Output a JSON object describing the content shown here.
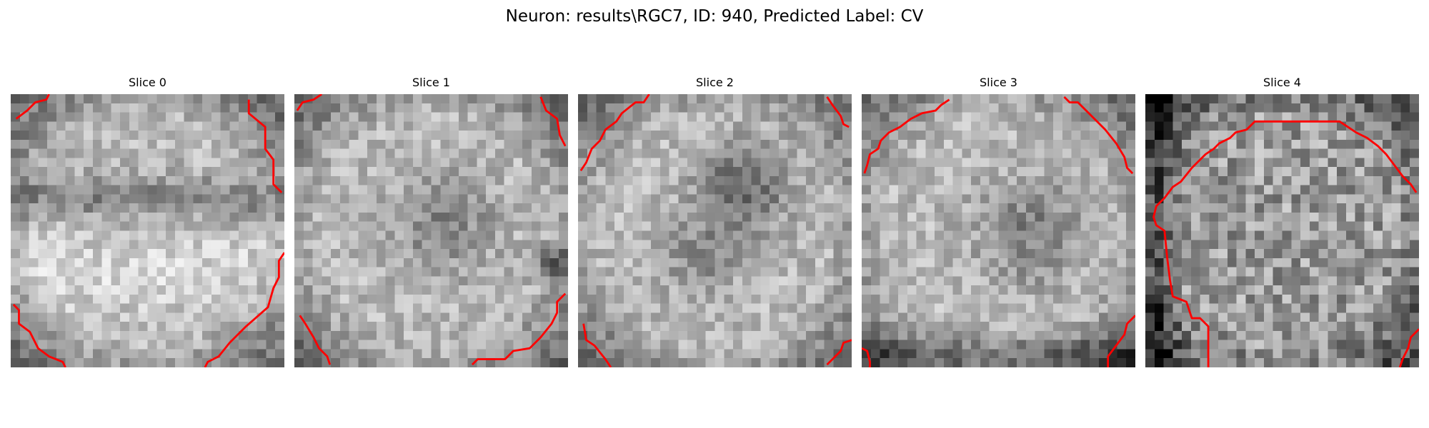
{
  "figure": {
    "title": "Neuron: results\\RGC7, ID: 940, Predicted Label: CV"
  },
  "contour_color": "#ff0000",
  "slices": [
    {
      "title": "Slice 0",
      "contours": [
        [
          [
            0.02,
            0.09
          ],
          [
            0.06,
            0.06
          ],
          [
            0.09,
            0.03
          ],
          [
            0.13,
            0.02
          ],
          [
            0.14,
            0.0
          ]
        ],
        [
          [
            0.87,
            0.02
          ],
          [
            0.87,
            0.07
          ],
          [
            0.93,
            0.12
          ],
          [
            0.93,
            0.2
          ],
          [
            0.96,
            0.24
          ],
          [
            0.96,
            0.33
          ],
          [
            0.99,
            0.36
          ]
        ],
        [
          [
            0.01,
            0.77
          ],
          [
            0.03,
            0.79
          ],
          [
            0.03,
            0.84
          ],
          [
            0.07,
            0.87
          ],
          [
            0.1,
            0.93
          ],
          [
            0.14,
            0.96
          ],
          [
            0.19,
            0.98
          ],
          [
            0.2,
            1.0
          ]
        ],
        [
          [
            0.71,
            1.0
          ],
          [
            0.72,
            0.98
          ],
          [
            0.76,
            0.96
          ],
          [
            0.8,
            0.91
          ],
          [
            0.86,
            0.85
          ],
          [
            0.94,
            0.78
          ],
          [
            0.96,
            0.71
          ],
          [
            0.98,
            0.67
          ],
          [
            0.98,
            0.61
          ],
          [
            1.0,
            0.58
          ]
        ]
      ]
    },
    {
      "title": "Slice 1",
      "contours": [
        [
          [
            0.01,
            0.06
          ],
          [
            0.03,
            0.03
          ],
          [
            0.07,
            0.02
          ],
          [
            0.1,
            0.0
          ]
        ],
        [
          [
            0.9,
            0.01
          ],
          [
            0.92,
            0.06
          ],
          [
            0.96,
            0.09
          ],
          [
            0.97,
            0.15
          ],
          [
            0.99,
            0.19
          ]
        ],
        [
          [
            0.02,
            0.81
          ],
          [
            0.04,
            0.84
          ],
          [
            0.07,
            0.89
          ],
          [
            0.09,
            0.93
          ],
          [
            0.12,
            0.96
          ],
          [
            0.13,
            0.99
          ]
        ],
        [
          [
            0.65,
            0.99
          ],
          [
            0.67,
            0.97
          ],
          [
            0.77,
            0.97
          ],
          [
            0.8,
            0.94
          ],
          [
            0.86,
            0.93
          ],
          [
            0.9,
            0.89
          ],
          [
            0.94,
            0.84
          ],
          [
            0.96,
            0.8
          ],
          [
            0.96,
            0.76
          ],
          [
            0.99,
            0.73
          ]
        ]
      ]
    },
    {
      "title": "Slice 2",
      "contours": [
        [
          [
            0.01,
            0.28
          ],
          [
            0.03,
            0.25
          ],
          [
            0.05,
            0.2
          ],
          [
            0.08,
            0.17
          ],
          [
            0.1,
            0.13
          ],
          [
            0.14,
            0.1
          ],
          [
            0.16,
            0.07
          ],
          [
            0.21,
            0.03
          ],
          [
            0.24,
            0.03
          ],
          [
            0.26,
            0.0
          ]
        ],
        [
          [
            0.91,
            0.01
          ],
          [
            0.93,
            0.04
          ],
          [
            0.96,
            0.08
          ],
          [
            0.97,
            0.11
          ],
          [
            0.99,
            0.12
          ]
        ],
        [
          [
            0.02,
            0.84
          ],
          [
            0.03,
            0.9
          ],
          [
            0.06,
            0.92
          ],
          [
            0.1,
            0.97
          ],
          [
            0.12,
            1.0
          ]
        ],
        [
          [
            0.91,
            0.99
          ],
          [
            0.93,
            0.97
          ],
          [
            0.96,
            0.94
          ],
          [
            0.97,
            0.91
          ],
          [
            1.0,
            0.9
          ]
        ]
      ]
    },
    {
      "title": "Slice 3",
      "contours": [
        [
          [
            0.01,
            0.29
          ],
          [
            0.02,
            0.26
          ],
          [
            0.03,
            0.22
          ],
          [
            0.06,
            0.2
          ],
          [
            0.07,
            0.17
          ],
          [
            0.1,
            0.14
          ],
          [
            0.14,
            0.12
          ],
          [
            0.18,
            0.09
          ],
          [
            0.22,
            0.07
          ],
          [
            0.27,
            0.06
          ],
          [
            0.29,
            0.04
          ],
          [
            0.32,
            0.02
          ]
        ],
        [
          [
            0.74,
            0.01
          ],
          [
            0.76,
            0.03
          ],
          [
            0.79,
            0.03
          ],
          [
            0.84,
            0.08
          ],
          [
            0.89,
            0.13
          ],
          [
            0.93,
            0.18
          ],
          [
            0.96,
            0.23
          ],
          [
            0.97,
            0.27
          ],
          [
            0.99,
            0.29
          ]
        ],
        [
          [
            0.0,
            0.93
          ],
          [
            0.02,
            0.94
          ],
          [
            0.03,
            0.98
          ],
          [
            0.03,
            1.0
          ]
        ],
        [
          [
            0.9,
            1.0
          ],
          [
            0.9,
            0.96
          ],
          [
            0.93,
            0.92
          ],
          [
            0.96,
            0.88
          ],
          [
            0.97,
            0.84
          ],
          [
            1.0,
            0.81
          ]
        ]
      ]
    },
    {
      "title": "Slice 4",
      "contours": [
        [
          [
            0.23,
            1.0
          ],
          [
            0.23,
            0.85
          ],
          [
            0.2,
            0.82
          ],
          [
            0.17,
            0.82
          ],
          [
            0.15,
            0.76
          ],
          [
            0.1,
            0.74
          ],
          [
            0.09,
            0.68
          ],
          [
            0.08,
            0.6
          ],
          [
            0.07,
            0.5
          ],
          [
            0.04,
            0.48
          ],
          [
            0.03,
            0.45
          ],
          [
            0.04,
            0.41
          ],
          [
            0.07,
            0.38
          ],
          [
            0.1,
            0.34
          ],
          [
            0.13,
            0.32
          ],
          [
            0.17,
            0.27
          ],
          [
            0.22,
            0.22
          ],
          [
            0.25,
            0.2
          ],
          [
            0.27,
            0.18
          ],
          [
            0.31,
            0.16
          ],
          [
            0.33,
            0.14
          ],
          [
            0.37,
            0.13
          ],
          [
            0.4,
            0.1
          ],
          [
            0.5,
            0.1
          ],
          [
            0.6,
            0.1
          ],
          [
            0.71,
            0.1
          ],
          [
            0.74,
            0.12
          ],
          [
            0.77,
            0.14
          ],
          [
            0.81,
            0.16
          ],
          [
            0.85,
            0.19
          ],
          [
            0.88,
            0.22
          ],
          [
            0.91,
            0.26
          ],
          [
            0.94,
            0.3
          ],
          [
            0.97,
            0.33
          ],
          [
            0.99,
            0.36
          ]
        ],
        [
          [
            0.93,
            1.0
          ],
          [
            0.94,
            0.97
          ],
          [
            0.96,
            0.93
          ],
          [
            0.97,
            0.89
          ],
          [
            1.0,
            0.86
          ]
        ]
      ]
    }
  ]
}
